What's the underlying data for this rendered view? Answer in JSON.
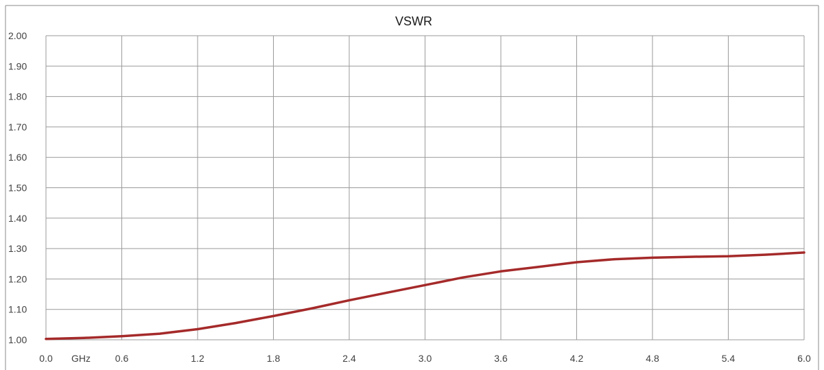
{
  "chart_data": {
    "type": "line",
    "title": "VSWR",
    "xlabel": "GHz",
    "ylabel": "",
    "xlim": [
      0.0,
      6.0
    ],
    "ylim": [
      1.0,
      2.0
    ],
    "grid": true,
    "legend": "none",
    "x_ticks": [
      "0.0",
      "0.6",
      "1.2",
      "1.8",
      "2.4",
      "3.0",
      "3.6",
      "4.2",
      "4.8",
      "5.4",
      "6.0"
    ],
    "y_ticks": [
      "1.00",
      "1.10",
      "1.20",
      "1.30",
      "1.40",
      "1.50",
      "1.60",
      "1.70",
      "1.80",
      "1.90",
      "2.00"
    ],
    "series": [
      {
        "color": "#A52A2A",
        "x": [
          0.0,
          0.3,
          0.6,
          0.9,
          1.2,
          1.5,
          1.8,
          2.1,
          2.4,
          2.7,
          3.0,
          3.3,
          3.6,
          3.9,
          4.2,
          4.5,
          4.8,
          5.1,
          5.4,
          5.7,
          6.0
        ],
        "y": [
          1.003,
          1.006,
          1.012,
          1.02,
          1.035,
          1.055,
          1.078,
          1.103,
          1.13,
          1.155,
          1.18,
          1.205,
          1.225,
          1.24,
          1.255,
          1.265,
          1.27,
          1.273,
          1.275,
          1.28,
          1.287
        ]
      }
    ]
  }
}
